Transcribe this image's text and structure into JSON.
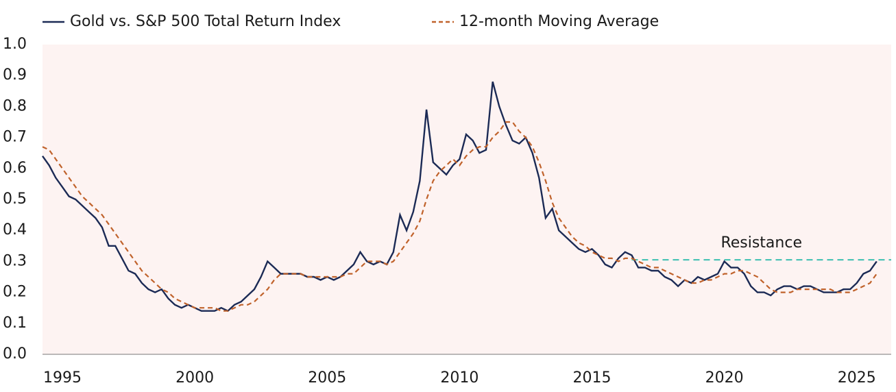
{
  "chart_data": {
    "type": "line",
    "x": [
      1994.25,
      1994.5,
      1994.75,
      1995,
      1995.25,
      1995.5,
      1995.75,
      1996,
      1996.25,
      1996.5,
      1996.75,
      1997,
      1997.25,
      1997.5,
      1997.75,
      1998,
      1998.25,
      1998.5,
      1998.75,
      1999,
      1999.25,
      1999.5,
      1999.75,
      2000,
      2000.25,
      2000.5,
      2000.75,
      2001,
      2001.25,
      2001.5,
      2001.75,
      2002,
      2002.25,
      2002.5,
      2002.75,
      2003,
      2003.25,
      2003.5,
      2003.75,
      2004,
      2004.25,
      2004.5,
      2004.75,
      2005,
      2005.25,
      2005.5,
      2005.75,
      2006,
      2006.25,
      2006.5,
      2006.75,
      2007,
      2007.25,
      2007.5,
      2007.75,
      2008,
      2008.25,
      2008.5,
      2008.75,
      2009,
      2009.25,
      2009.5,
      2009.75,
      2010,
      2010.25,
      2010.5,
      2010.75,
      2011,
      2011.25,
      2011.5,
      2011.75,
      2012,
      2012.25,
      2012.5,
      2012.75,
      2013,
      2013.25,
      2013.5,
      2013.75,
      2014,
      2014.25,
      2014.5,
      2014.75,
      2015,
      2015.25,
      2015.5,
      2015.75,
      2016,
      2016.25,
      2016.5,
      2016.75,
      2017,
      2017.25,
      2017.5,
      2017.75,
      2018,
      2018.25,
      2018.5,
      2018.75,
      2019,
      2019.25,
      2019.5,
      2019.75,
      2020,
      2020.25,
      2020.5,
      2020.75,
      2021,
      2021.25,
      2021.5,
      2021.75,
      2022,
      2022.25,
      2022.5,
      2022.75,
      2023,
      2023.25,
      2023.5,
      2023.75,
      2024,
      2024.25,
      2024.5,
      2024.75,
      2025,
      2025.25,
      2025.5,
      2025.75
    ],
    "series": [
      {
        "name": "Gold vs. S&P 500 Total Return Index",
        "color": "#1b2a55",
        "style": "solid",
        "values": [
          0.64,
          0.61,
          0.57,
          0.54,
          0.51,
          0.5,
          0.48,
          0.46,
          0.44,
          0.41,
          0.35,
          0.35,
          0.31,
          0.27,
          0.26,
          0.23,
          0.21,
          0.2,
          0.21,
          0.18,
          0.16,
          0.15,
          0.16,
          0.15,
          0.14,
          0.14,
          0.14,
          0.15,
          0.14,
          0.16,
          0.17,
          0.19,
          0.21,
          0.25,
          0.3,
          0.28,
          0.26,
          0.26,
          0.26,
          0.26,
          0.25,
          0.25,
          0.24,
          0.25,
          0.24,
          0.25,
          0.27,
          0.29,
          0.33,
          0.3,
          0.29,
          0.3,
          0.29,
          0.33,
          0.45,
          0.4,
          0.46,
          0.56,
          0.79,
          0.62,
          0.6,
          0.58,
          0.61,
          0.63,
          0.71,
          0.69,
          0.65,
          0.66,
          0.88,
          0.8,
          0.74,
          0.69,
          0.68,
          0.7,
          0.65,
          0.57,
          0.44,
          0.47,
          0.4,
          0.38,
          0.36,
          0.34,
          0.33,
          0.34,
          0.32,
          0.29,
          0.28,
          0.31,
          0.33,
          0.32,
          0.28,
          0.28,
          0.27,
          0.27,
          0.25,
          0.24,
          0.22,
          0.24,
          0.23,
          0.25,
          0.24,
          0.25,
          0.26,
          0.3,
          0.28,
          0.28,
          0.26,
          0.22,
          0.2,
          0.2,
          0.19,
          0.21,
          0.22,
          0.22,
          0.21,
          0.22,
          0.22,
          0.21,
          0.2,
          0.2,
          0.2,
          0.21,
          0.21,
          0.23,
          0.26,
          0.27,
          0.3
        ]
      },
      {
        "name": "12-month Moving Average",
        "color": "#c0622b",
        "style": "dashed",
        "values": [
          0.67,
          0.66,
          0.63,
          0.6,
          0.57,
          0.54,
          0.51,
          0.49,
          0.47,
          0.45,
          0.42,
          0.39,
          0.36,
          0.33,
          0.3,
          0.27,
          0.25,
          0.23,
          0.21,
          0.2,
          0.18,
          0.17,
          0.16,
          0.15,
          0.15,
          0.15,
          0.15,
          0.14,
          0.14,
          0.15,
          0.16,
          0.16,
          0.17,
          0.19,
          0.21,
          0.24,
          0.26,
          0.26,
          0.26,
          0.26,
          0.25,
          0.25,
          0.25,
          0.25,
          0.25,
          0.25,
          0.26,
          0.26,
          0.28,
          0.3,
          0.3,
          0.3,
          0.29,
          0.3,
          0.33,
          0.36,
          0.39,
          0.43,
          0.5,
          0.56,
          0.59,
          0.61,
          0.63,
          0.61,
          0.64,
          0.66,
          0.67,
          0.67,
          0.7,
          0.72,
          0.75,
          0.75,
          0.72,
          0.7,
          0.67,
          0.62,
          0.56,
          0.49,
          0.44,
          0.41,
          0.38,
          0.36,
          0.35,
          0.33,
          0.32,
          0.31,
          0.31,
          0.3,
          0.31,
          0.31,
          0.3,
          0.29,
          0.28,
          0.28,
          0.27,
          0.26,
          0.25,
          0.24,
          0.23,
          0.23,
          0.24,
          0.24,
          0.25,
          0.26,
          0.26,
          0.27,
          0.27,
          0.26,
          0.25,
          0.23,
          0.21,
          0.2,
          0.2,
          0.2,
          0.21,
          0.21,
          0.21,
          0.21,
          0.21,
          0.21,
          0.2,
          0.2,
          0.2,
          0.21,
          0.22,
          0.23,
          0.26
        ]
      }
    ],
    "annotations": [
      {
        "text": "Resistance",
        "y": 0.305,
        "x_start": 2016.5,
        "color": "#3bbfb0",
        "style": "dashed"
      }
    ],
    "xlim": [
      1994.25,
      2026.3
    ],
    "xticks": [
      1995,
      2000,
      2005,
      2010,
      2015,
      2020,
      2025
    ],
    "ylim": [
      0,
      1
    ],
    "yticks": [
      {
        "value": 0,
        "label": "0.0"
      },
      0.1,
      0.2,
      0.3,
      0.4,
      0.5,
      0.6,
      0.7,
      0.8,
      0.9,
      {
        "value": 1,
        "label": "1.0"
      }
    ],
    "background": "#fdf3f2",
    "legend": "top"
  }
}
